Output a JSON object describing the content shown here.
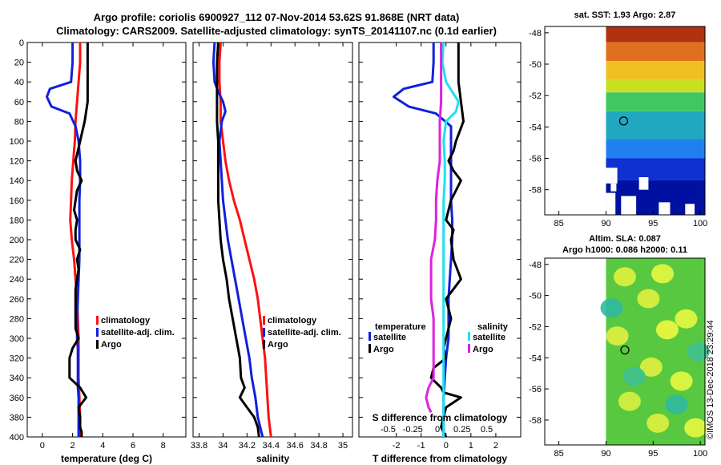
{
  "header": {
    "line1": "Argo profile: coriolis 6900927_112 07-Nov-2014 53.62S 91.868E (NRT data)",
    "line2": "Climatology: CARS2009. Satellite-adjusted climatology: synTS_20141107.nc (0.1d earlier)"
  },
  "colors": {
    "climatology": "#ff1010",
    "satellite": "#1020dd",
    "argo": "#000000",
    "salinity_satellite": "#20e0f0",
    "salinity_argo": "#e020e0"
  },
  "credit": "©IMOS 13-Dec-2018 23:29:44",
  "chart_data": [
    {
      "type": "line",
      "id": "temperature",
      "xlabel": "temperature (deg C)",
      "ylabel": "",
      "xlim": [
        -1,
        9.5
      ],
      "ylim": [
        400,
        0
      ],
      "x_ticks": [
        0,
        2,
        4,
        6,
        8
      ],
      "x_tick_labels": [
        "0",
        "2",
        "4",
        "6",
        "8"
      ],
      "y_ticks": [
        0,
        20,
        40,
        60,
        80,
        100,
        120,
        140,
        160,
        180,
        200,
        220,
        240,
        260,
        280,
        300,
        320,
        340,
        360,
        380,
        400
      ],
      "y_tick_labels": [
        "0",
        "20",
        "40",
        "60",
        "80",
        "100",
        "120",
        "140",
        "160",
        "180",
        "200",
        "220",
        "240",
        "260",
        "280",
        "300",
        "320",
        "340",
        "360",
        "380",
        "400"
      ],
      "legend": {
        "position": "lower-right",
        "items": [
          {
            "label": "climatology",
            "color": "#ff1010"
          },
          {
            "label": "satellite-adj. clim.",
            "color": "#1020dd"
          },
          {
            "label": "Argo",
            "color": "#000000"
          }
        ]
      },
      "series": [
        {
          "name": "climatology",
          "color": "#ff1010",
          "x": [
            2.5,
            2.5,
            2.4,
            2.3,
            2.2,
            2.15,
            2.05,
            1.95,
            1.9,
            1.85,
            1.95,
            2.1,
            2.2,
            2.3,
            2.35,
            2.4,
            2.4,
            2.4,
            2.45,
            2.5,
            2.5
          ],
          "y": [
            0,
            20,
            40,
            60,
            80,
            100,
            120,
            140,
            160,
            180,
            200,
            220,
            240,
            260,
            280,
            300,
            320,
            340,
            360,
            380,
            400
          ]
        },
        {
          "name": "satellite-adj. clim.",
          "color": "#1020dd",
          "x": [
            2.0,
            2.0,
            1.9,
            0.5,
            0.3,
            0.6,
            1.8,
            2.2,
            2.4,
            2.5,
            2.5,
            2.45,
            2.45,
            2.45,
            2.45,
            2.4,
            2.35,
            2.3,
            2.3,
            2.3,
            2.35,
            2.35,
            2.35,
            2.35,
            2.35,
            2.4,
            2.4,
            2.4,
            2.4
          ],
          "y": [
            0,
            20,
            40,
            47,
            55,
            65,
            72,
            85,
            100,
            120,
            140,
            160,
            180,
            200,
            220,
            240,
            260,
            280,
            290,
            300,
            310,
            320,
            330,
            340,
            350,
            360,
            370,
            380,
            400
          ]
        },
        {
          "name": "Argo",
          "color": "#000000",
          "x": [
            3.0,
            3.0,
            3.0,
            3.0,
            2.8,
            2.5,
            2.35,
            2.2,
            2.3,
            2.6,
            2.3,
            2.2,
            2.1,
            2.3,
            2.2,
            2.2,
            2.5,
            2.3,
            2.4,
            2.2,
            2.2,
            2.4,
            2.0,
            1.8,
            1.8,
            2.5,
            2.9,
            2.4,
            2.5,
            2.5,
            2.6,
            2.6
          ],
          "y": [
            0,
            20,
            40,
            60,
            80,
            100,
            110,
            120,
            130,
            140,
            150,
            160,
            170,
            180,
            190,
            200,
            210,
            220,
            230,
            250,
            290,
            300,
            310,
            320,
            340,
            350,
            360,
            370,
            380,
            390,
            395,
            400
          ]
        }
      ]
    },
    {
      "type": "line",
      "id": "salinity",
      "xlabel": "salinity",
      "xlim": [
        33.75,
        35.08
      ],
      "ylim": [
        400,
        0
      ],
      "x_ticks": [
        33.8,
        34,
        34.2,
        34.4,
        34.6,
        34.8,
        35
      ],
      "x_tick_labels": [
        "33.8",
        "34",
        "34.2",
        "34.4",
        "34.6",
        "34.8",
        "35"
      ],
      "legend": {
        "position": "lower-right",
        "items": [
          {
            "label": "climatology",
            "color": "#ff1010"
          },
          {
            "label": "satellite-adj. clim.",
            "color": "#1020dd"
          },
          {
            "label": "Argo",
            "color": "#000000"
          }
        ]
      },
      "series": [
        {
          "name": "climatology",
          "color": "#ff1010",
          "x": [
            33.98,
            33.97,
            33.97,
            33.98,
            33.98,
            34.0,
            34.02,
            34.05,
            34.09,
            34.14,
            34.18,
            34.22,
            34.26,
            34.29,
            34.31,
            34.33,
            34.35,
            34.36,
            34.37,
            34.38,
            34.4
          ],
          "y": [
            0,
            20,
            40,
            60,
            80,
            100,
            120,
            140,
            160,
            180,
            200,
            220,
            240,
            260,
            280,
            300,
            320,
            340,
            360,
            380,
            400
          ]
        },
        {
          "name": "satellite-adj. clim.",
          "color": "#1020dd",
          "x": [
            33.93,
            33.92,
            33.93,
            33.96,
            34.0,
            34.02,
            33.99,
            33.97,
            33.98,
            33.99,
            34.0,
            34.02,
            34.04,
            34.07,
            34.1,
            34.13,
            34.16,
            34.19,
            34.22,
            34.24,
            34.27,
            34.29,
            34.31,
            34.33
          ],
          "y": [
            0,
            20,
            40,
            50,
            60,
            70,
            80,
            100,
            120,
            140,
            160,
            180,
            200,
            220,
            240,
            260,
            280,
            300,
            320,
            340,
            360,
            380,
            390,
            400
          ]
        },
        {
          "name": "Argo",
          "color": "#000000",
          "x": [
            33.96,
            33.95,
            33.95,
            33.95,
            33.95,
            33.96,
            33.96,
            33.96,
            33.96,
            33.97,
            33.98,
            34.0,
            34.03,
            34.05,
            34.08,
            34.11,
            34.14,
            34.15,
            34.18,
            34.14,
            34.2,
            34.26,
            34.29,
            34.3
          ],
          "y": [
            0,
            20,
            40,
            60,
            80,
            100,
            120,
            140,
            160,
            180,
            200,
            220,
            240,
            260,
            280,
            300,
            320,
            340,
            350,
            360,
            370,
            380,
            390,
            400
          ]
        }
      ]
    },
    {
      "type": "line",
      "id": "difference",
      "xlabel": "T difference from climatology",
      "xlabel_top": "S difference from climatology",
      "xlim": [
        -3.5,
        3.0
      ],
      "ylim": [
        400,
        0
      ],
      "x_ticks": [
        -2,
        -1,
        0,
        1,
        2
      ],
      "x_tick_labels": [
        "-2",
        "-1",
        "0",
        "1",
        "2"
      ],
      "top_ticks": [
        -1,
        -0.5,
        0,
        0.5,
        1
      ],
      "top_tick_labels": [
        "-0.5",
        "-0.25",
        "0",
        "0.25",
        "0.5"
      ],
      "legend": {
        "position": "lower-center",
        "groups": [
          {
            "title": "temperature",
            "items": [
              {
                "label": "satellite",
                "color": "#1020dd"
              },
              {
                "label": "Argo",
                "color": "#000000"
              }
            ]
          },
          {
            "title": "salinity",
            "items": [
              {
                "label": "satellite",
                "color": "#20e0f0"
              },
              {
                "label": "Argo",
                "color": "#e020e0"
              }
            ]
          }
        ]
      },
      "series": [
        {
          "name": "temperature satellite",
          "color": "#1020dd",
          "x": [
            -0.5,
            -0.5,
            -0.55,
            -1.7,
            -2.1,
            -1.5,
            -0.4,
            0.2,
            0.2,
            0.2,
            0.2,
            0.2,
            0.25,
            0.25,
            0.2,
            0.15,
            0.1,
            0.1,
            0.1,
            0.0,
            -0.1,
            -0.1
          ],
          "y": [
            0,
            20,
            40,
            47,
            55,
            65,
            72,
            85,
            100,
            120,
            140,
            160,
            180,
            200,
            220,
            240,
            260,
            280,
            300,
            320,
            360,
            400
          ]
        },
        {
          "name": "temperature Argo",
          "color": "#000000",
          "x": [
            0.5,
            0.5,
            0.5,
            0.6,
            0.7,
            0.4,
            0.3,
            0.1,
            0.3,
            0.6,
            0.4,
            0.2,
            0.0,
            0.3,
            0.2,
            0.3,
            0.6,
            0.0,
            0.2,
            0.0,
            -0.1,
            0.0,
            -0.5,
            -0.6,
            -0.2,
            -0.1,
            0.6,
            0.0,
            -0.2,
            0.0
          ],
          "y": [
            0,
            20,
            40,
            60,
            80,
            100,
            110,
            120,
            130,
            140,
            150,
            160,
            180,
            190,
            200,
            220,
            240,
            260,
            280,
            300,
            310,
            320,
            330,
            340,
            350,
            355,
            360,
            370,
            390,
            400
          ]
        },
        {
          "name": "salinity satellite",
          "color": "#20e0f0",
          "x": [
            -0.1,
            -0.15,
            0.0,
            0.5,
            0.4,
            0.0,
            -0.1,
            -0.05,
            -0.05,
            -0.1,
            -0.1,
            -0.1,
            -0.1,
            -0.1,
            -0.1,
            -0.1,
            -0.1,
            -0.1,
            -0.1,
            -0.1,
            -0.1,
            -0.1
          ],
          "y": [
            0,
            20,
            40,
            60,
            70,
            80,
            100,
            120,
            140,
            160,
            180,
            200,
            220,
            240,
            260,
            280,
            300,
            320,
            340,
            360,
            380,
            400
          ]
        },
        {
          "name": "salinity Argo",
          "color": "#e020e0",
          "x": [
            -0.2,
            -0.2,
            -0.2,
            -0.2,
            -0.25,
            -0.25,
            -0.25,
            -0.35,
            -0.4,
            -0.4,
            -0.45,
            -0.6,
            -0.6,
            -0.6,
            -0.5,
            -0.5,
            -0.5,
            -0.5,
            -0.7,
            -0.8,
            -0.7,
            -0.6
          ],
          "y": [
            0,
            20,
            40,
            60,
            80,
            100,
            120,
            140,
            160,
            180,
            200,
            220,
            240,
            260,
            280,
            300,
            320,
            340,
            350,
            360,
            370,
            375
          ]
        }
      ]
    },
    {
      "type": "heatmap",
      "id": "sst-map",
      "title": "sat. SST: 1.93 Argo: 2.87",
      "xlim": [
        83.5,
        100.5
      ],
      "ylim": [
        -59.6,
        -47.6
      ],
      "x_ticks": [
        85,
        90,
        95,
        100
      ],
      "x_tick_labels": [
        "85",
        "90",
        "95",
        "100"
      ],
      "y_ticks": [
        -48,
        -50,
        -52,
        -54,
        -56,
        -58
      ],
      "y_tick_labels": [
        "-48",
        "-50",
        "-52",
        "-54",
        "-56",
        "-58"
      ],
      "data_lon_range": [
        90,
        100.5
      ],
      "marker": {
        "lon": 91.868,
        "lat": -53.62
      },
      "bands": [
        {
          "lat": [
            -47.6,
            -48.6
          ],
          "color": "#b03010"
        },
        {
          "lat": [
            -48.6,
            -49.8
          ],
          "color": "#e07020"
        },
        {
          "lat": [
            -49.8,
            -51.0
          ],
          "color": "#f0c020"
        },
        {
          "lat": [
            -51.0,
            -51.8
          ],
          "color": "#c8e020"
        },
        {
          "lat": [
            -51.8,
            -53.0
          ],
          "color": "#40c860"
        },
        {
          "lat": [
            -53.0,
            -54.8
          ],
          "color": "#20a8c0"
        },
        {
          "lat": [
            -54.8,
            -56.0
          ],
          "color": "#2080f0"
        },
        {
          "lat": [
            -56.0,
            -57.4
          ],
          "color": "#1030d0"
        },
        {
          "lat": [
            -57.4,
            -59.6
          ],
          "color": "#0010a0"
        }
      ]
    },
    {
      "type": "heatmap",
      "id": "sla-map",
      "title": "Altim. SLA: 0.087",
      "subtitle": "Argo h1000: 0.086 h2000: 0.11",
      "xlim": [
        83.5,
        100.5
      ],
      "ylim": [
        -59.6,
        -47.6
      ],
      "x_ticks": [
        85,
        90,
        95,
        100
      ],
      "x_tick_labels": [
        "85",
        "90",
        "95",
        "100"
      ],
      "y_ticks": [
        -48,
        -50,
        -52,
        -54,
        -56,
        -58
      ],
      "y_tick_labels": [
        "-48",
        "-50",
        "-52",
        "-54",
        "-56",
        "-58"
      ],
      "data_lon_range": [
        90,
        100.5
      ],
      "marker": {
        "lon": 92.0,
        "lat": -53.5
      },
      "base_color": "#58c840",
      "blobs": [
        {
          "lon": 92.0,
          "lat": -48.8,
          "color": "#e0f040"
        },
        {
          "lon": 96.0,
          "lat": -48.6,
          "color": "#e8f840"
        },
        {
          "lon": 94.5,
          "lat": -50.2,
          "color": "#e0f040"
        },
        {
          "lon": 98.5,
          "lat": -51.5,
          "color": "#e8f840"
        },
        {
          "lon": 96.5,
          "lat": -52.2,
          "color": "#f0f840"
        },
        {
          "lon": 91.2,
          "lat": -52.6,
          "color": "#e0f040"
        },
        {
          "lon": 94.8,
          "lat": -54.6,
          "color": "#e0f040"
        },
        {
          "lon": 98.0,
          "lat": -55.5,
          "color": "#e8f840"
        },
        {
          "lon": 92.5,
          "lat": -56.8,
          "color": "#d8f040"
        },
        {
          "lon": 95.5,
          "lat": -58.2,
          "color": "#e0f040"
        },
        {
          "lon": 99.5,
          "lat": -58.5,
          "color": "#e8f840"
        },
        {
          "lon": 90.6,
          "lat": -50.8,
          "color": "#30b8a0"
        },
        {
          "lon": 97.5,
          "lat": -57.0,
          "color": "#30b8a0"
        },
        {
          "lon": 93.0,
          "lat": -55.2,
          "color": "#40c090"
        },
        {
          "lon": 99.8,
          "lat": -53.6,
          "color": "#40c090"
        }
      ]
    }
  ]
}
